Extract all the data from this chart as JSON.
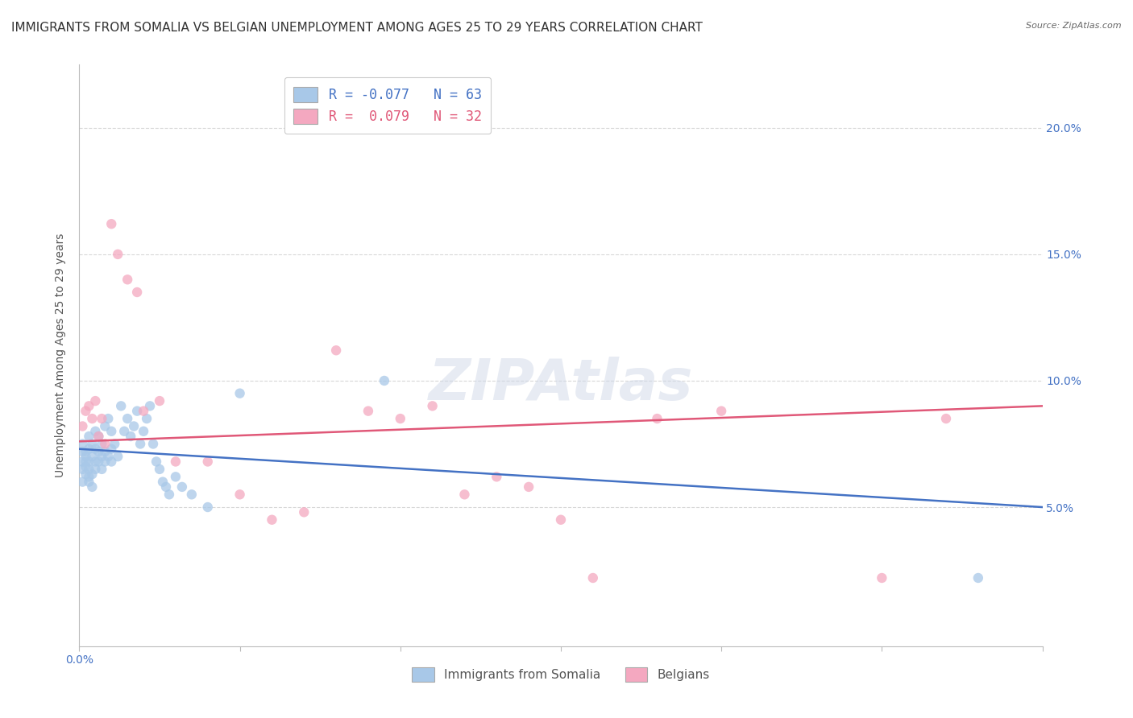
{
  "title": "IMMIGRANTS FROM SOMALIA VS BELGIAN UNEMPLOYMENT AMONG AGES 25 TO 29 YEARS CORRELATION CHART",
  "source": "Source: ZipAtlas.com",
  "ylabel": "Unemployment Among Ages 25 to 29 years",
  "xlim": [
    0.0,
    0.3
  ],
  "ylim": [
    -0.005,
    0.225
  ],
  "yticks": [
    0.05,
    0.1,
    0.15,
    0.2
  ],
  "ytick_labels": [
    "5.0%",
    "10.0%",
    "15.0%",
    "20.0%"
  ],
  "xticks": [
    0.0,
    0.05,
    0.1,
    0.15,
    0.2,
    0.25,
    0.3
  ],
  "xtick_labels_shown": {
    "0.0": "0.0%"
  },
  "legend_entries": [
    {
      "label": "R = -0.077   N = 63",
      "color": "#7ab0d4"
    },
    {
      "label": "R =  0.079   N = 32",
      "color": "#f4a0b0"
    }
  ],
  "legend_label1": "Immigrants from Somalia",
  "legend_label2": "Belgians",
  "blue_scatter_x": [
    0.001,
    0.001,
    0.001,
    0.001,
    0.001,
    0.002,
    0.002,
    0.002,
    0.002,
    0.002,
    0.003,
    0.003,
    0.003,
    0.003,
    0.003,
    0.003,
    0.004,
    0.004,
    0.004,
    0.004,
    0.005,
    0.005,
    0.005,
    0.005,
    0.006,
    0.006,
    0.006,
    0.007,
    0.007,
    0.007,
    0.008,
    0.008,
    0.008,
    0.009,
    0.009,
    0.01,
    0.01,
    0.01,
    0.011,
    0.012,
    0.013,
    0.014,
    0.015,
    0.016,
    0.017,
    0.018,
    0.019,
    0.02,
    0.021,
    0.022,
    0.023,
    0.024,
    0.025,
    0.026,
    0.027,
    0.028,
    0.03,
    0.032,
    0.035,
    0.04,
    0.05,
    0.095,
    0.28
  ],
  "blue_scatter_y": [
    0.068,
    0.072,
    0.075,
    0.065,
    0.06,
    0.07,
    0.068,
    0.063,
    0.072,
    0.066,
    0.062,
    0.068,
    0.073,
    0.078,
    0.065,
    0.06,
    0.07,
    0.075,
    0.063,
    0.058,
    0.068,
    0.073,
    0.065,
    0.08,
    0.072,
    0.068,
    0.078,
    0.065,
    0.07,
    0.075,
    0.072,
    0.068,
    0.082,
    0.07,
    0.085,
    0.073,
    0.068,
    0.08,
    0.075,
    0.07,
    0.09,
    0.08,
    0.085,
    0.078,
    0.082,
    0.088,
    0.075,
    0.08,
    0.085,
    0.09,
    0.075,
    0.068,
    0.065,
    0.06,
    0.058,
    0.055,
    0.062,
    0.058,
    0.055,
    0.05,
    0.095,
    0.1,
    0.022
  ],
  "pink_scatter_x": [
    0.001,
    0.002,
    0.003,
    0.004,
    0.005,
    0.006,
    0.007,
    0.008,
    0.01,
    0.012,
    0.015,
    0.018,
    0.02,
    0.025,
    0.03,
    0.04,
    0.05,
    0.06,
    0.07,
    0.08,
    0.09,
    0.1,
    0.11,
    0.12,
    0.13,
    0.14,
    0.15,
    0.16,
    0.18,
    0.2,
    0.25,
    0.27
  ],
  "pink_scatter_y": [
    0.082,
    0.088,
    0.09,
    0.085,
    0.092,
    0.078,
    0.085,
    0.075,
    0.162,
    0.15,
    0.14,
    0.135,
    0.088,
    0.092,
    0.068,
    0.068,
    0.055,
    0.045,
    0.048,
    0.112,
    0.088,
    0.085,
    0.09,
    0.055,
    0.062,
    0.058,
    0.045,
    0.022,
    0.085,
    0.088,
    0.022,
    0.085
  ],
  "blue_color": "#a8c8e8",
  "pink_color": "#f4a8c0",
  "blue_line_color": "#4472c4",
  "pink_line_color": "#e05878",
  "grid_color": "#d8d8d8",
  "background_color": "#ffffff",
  "title_fontsize": 11,
  "axis_label_fontsize": 10,
  "tick_fontsize": 10,
  "marker_size": 80,
  "blue_trend_start": 0.073,
  "blue_trend_end": 0.05,
  "pink_trend_start": 0.076,
  "pink_trend_end": 0.09
}
